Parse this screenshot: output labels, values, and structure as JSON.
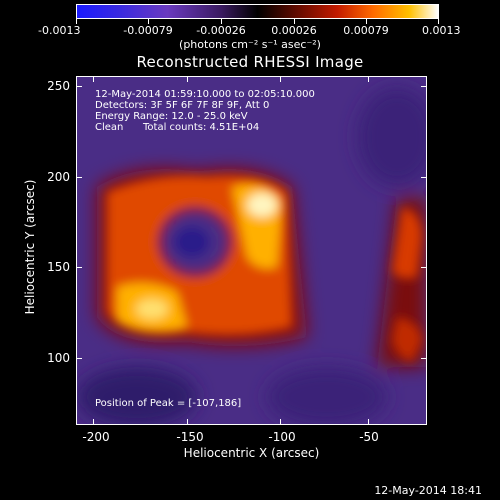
{
  "colorbar": {
    "ticks": [
      "-0.0013",
      "-0.00079",
      "-0.00026",
      "0.00026",
      "0.00079",
      "0.0013"
    ],
    "units_line": "(photons cm⁻² s⁻¹ asec⁻²)"
  },
  "title": "Reconstructed RHESSI Image",
  "info": {
    "line1": "12-May-2014 01:59:10.000 to 02:05:10.000",
    "line2": "Detectors: 3F 5F 6F 7F 8F 9F, Att 0",
    "line3": "Energy Range: 12.0 - 25.0 keV",
    "line4_a": "Clean",
    "line4_b": "Total counts: 4.51E+04",
    "peak": "Position of Peak = [-107,186]"
  },
  "axes": {
    "xlabel": "Heliocentric X (arcsec)",
    "ylabel": "Heliocentric Y (arcsec)",
    "xticks": [
      "-200",
      "-150",
      "-100",
      "-50"
    ],
    "yticks": [
      "250",
      "200",
      "150",
      "100"
    ]
  },
  "timestamp": "12-May-2014 18:41"
}
